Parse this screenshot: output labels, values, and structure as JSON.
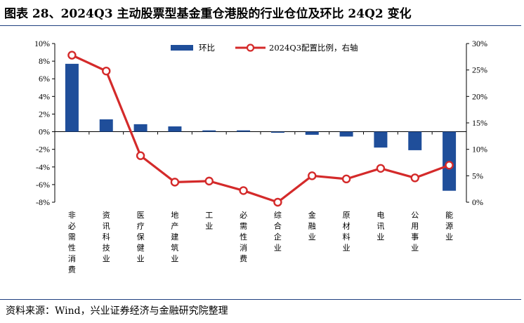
{
  "title": "图表 28、2024Q3 主动股票型基金重仓港股的行业仓位及环比 24Q2 变化",
  "source": "资料来源：Wind，兴业证券经济与金融研究院整理",
  "colors": {
    "bar": "#1f4e9a",
    "line": "#d42a2a",
    "rule": "#1f3f7f"
  },
  "chart_data": {
    "type": "bar+line",
    "categories": [
      "非必需性消费",
      "资讯科技业",
      "医疗保健业",
      "地产建筑业",
      "工业",
      "必需性消费",
      "综合企业",
      "金融业",
      "原材料业",
      "电讯业",
      "公用事业",
      "能源业"
    ],
    "series": [
      {
        "name": "环比",
        "type": "bar",
        "axis": "left",
        "values": [
          7.7,
          1.4,
          0.85,
          0.6,
          0.15,
          0.15,
          -0.12,
          -0.35,
          -0.55,
          -1.8,
          -2.1,
          -6.7
        ]
      },
      {
        "name": "2024Q3配置比例，右轴",
        "type": "line",
        "axis": "right",
        "values": [
          27.8,
          24.8,
          8.8,
          3.8,
          4.0,
          2.2,
          0.0,
          5.0,
          4.4,
          6.4,
          4.6,
          7.0
        ]
      }
    ],
    "left_axis": {
      "min": -8,
      "max": 10,
      "step": 2,
      "tick_labels": [
        "-8%",
        "-6%",
        "-4%",
        "-2%",
        "0%",
        "2%",
        "4%",
        "6%",
        "8%",
        "10%"
      ]
    },
    "right_axis": {
      "min": 0,
      "max": 30,
      "step": 5,
      "tick_labels": [
        "0%",
        "5%",
        "10%",
        "15%",
        "20%",
        "25%",
        "30%"
      ]
    },
    "legend_placement": "top",
    "grid": false
  }
}
